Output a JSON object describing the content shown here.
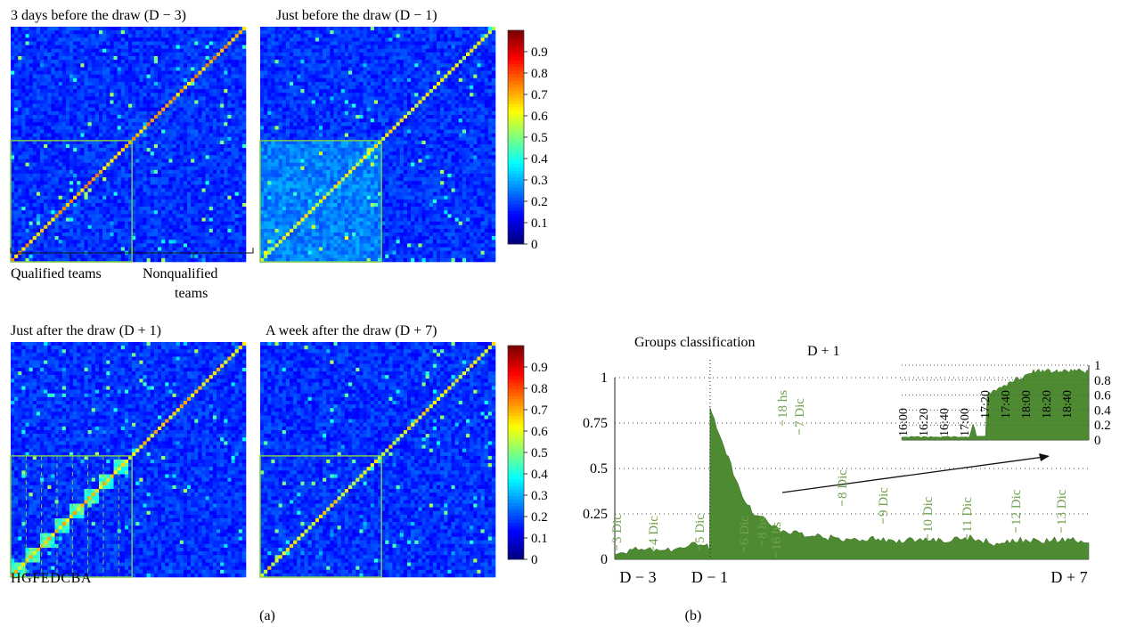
{
  "panels_a": {
    "titles": {
      "d_minus_3": "3 days before the draw (D − 3)",
      "d_minus_1": "Just before the draw (D − 1)",
      "d_plus_1": "Just after the draw (D + 1)",
      "d_plus_7": "A week after the draw (D + 7)"
    },
    "qualified_label": "Qualified teams",
    "nonqualified_label_line1": "Nonqualified",
    "nonqualified_label_line2": "teams",
    "group_letters": "HGFEDCBA",
    "colorbar_ticks": [
      "0",
      "0.1",
      "0.2",
      "0.3",
      "0.4",
      "0.5",
      "0.6",
      "0.7",
      "0.8",
      "0.9"
    ],
    "caption": "(a)",
    "colormap": "jet",
    "highlight_color": "#7cc84f"
  },
  "panel_b": {
    "title": "Groups classification",
    "marker_label": "D + 1",
    "caption": "(b)",
    "fill_color": "#4e8a32",
    "label_color": "#6fa24a",
    "y_ticks": [
      "0",
      "0.25",
      "0.5",
      "0.75",
      "1"
    ],
    "x_ticks": [
      "D − 3",
      "D − 1",
      "D + 7"
    ],
    "event_labels": [
      "3 Dic",
      "4 Dic",
      "5 Dic",
      "6 Dic",
      "8 hs",
      "16 hs",
      "18 hs",
      "7 Dic",
      "8 Dic",
      "9 Dic",
      "10 Dic",
      "11 Dic",
      "12 Dic",
      "13 Dic"
    ],
    "inset_y_ticks": [
      "0",
      "0.2",
      "0.4",
      "0.6",
      "0.8",
      "1"
    ],
    "inset_time_labels": [
      "16:00",
      "16:20",
      "16:40",
      "17:00",
      "17:20",
      "17:40",
      "18:00",
      "18:20",
      "18:40"
    ]
  },
  "chart_data": [
    {
      "type": "heatmap",
      "title": "3 days before the draw (D − 3)",
      "rows": 64,
      "cols": 64,
      "vmin": 0,
      "vmax": 1,
      "diagonal_value": 0.7
    },
    {
      "type": "heatmap",
      "title": "Just before the draw (D − 1)",
      "rows": 64,
      "cols": 64,
      "vmin": 0,
      "vmax": 1,
      "diagonal_value": 0.6
    },
    {
      "type": "heatmap",
      "title": "Just after the draw (D + 1)",
      "rows": 64,
      "cols": 64,
      "vmin": 0,
      "vmax": 1,
      "diagonal_value": 0.65
    },
    {
      "type": "heatmap",
      "title": "A week after the draw (D + 7)",
      "rows": 64,
      "cols": 64,
      "vmin": 0,
      "vmax": 1,
      "diagonal_value": 0.62
    },
    {
      "type": "area",
      "title": "Groups classification",
      "x": [
        -3,
        -2.75,
        -2.5,
        -2.25,
        -2,
        -1.75,
        -1.5,
        -1.25,
        -1.05,
        -1,
        -0.99,
        -0.95,
        -0.9,
        -0.8,
        -0.7,
        -0.6,
        -0.5,
        -0.4,
        -0.3,
        -0.2,
        -0.1,
        0,
        0.25,
        0.5,
        1,
        1.5,
        2,
        2.5,
        3,
        3.5,
        4,
        4.5,
        5,
        5.5,
        6,
        6.5,
        7
      ],
      "y": [
        0.03,
        0.04,
        0.06,
        0.05,
        0.04,
        0.06,
        0.07,
        0.09,
        0.08,
        0.05,
        0.85,
        0.82,
        0.76,
        0.68,
        0.62,
        0.55,
        0.48,
        0.41,
        0.35,
        0.3,
        0.27,
        0.24,
        0.2,
        0.16,
        0.13,
        0.12,
        0.11,
        0.12,
        0.1,
        0.11,
        0.1,
        0.12,
        0.09,
        0.11,
        0.1,
        0.11,
        0.09
      ],
      "xlim": [
        -3,
        7
      ],
      "ylim": [
        0,
        1
      ]
    }
  ]
}
